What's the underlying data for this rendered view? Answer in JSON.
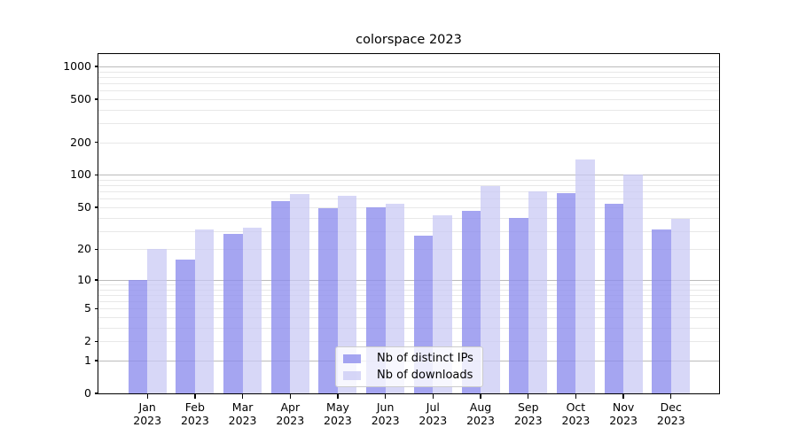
{
  "title": "colorspace 2023",
  "chart_data": {
    "type": "bar",
    "title": "colorspace 2023",
    "categories": [
      "Jan 2023",
      "Feb 2023",
      "Mar 2023",
      "Apr 2023",
      "May 2023",
      "Jun 2023",
      "Jul 2023",
      "Aug 2023",
      "Sep 2023",
      "Oct 2023",
      "Nov 2023",
      "Dec 2023"
    ],
    "series": [
      {
        "name": "Nb of distinct IPs",
        "color": "rgba(140,140,237,0.78)",
        "values": [
          10,
          16,
          28,
          57,
          49,
          50,
          27,
          46,
          40,
          68,
          54,
          31
        ]
      },
      {
        "name": "Nb of downloads",
        "color": "rgba(200,200,244,0.72)",
        "values": [
          20,
          31,
          32,
          67,
          64,
          54,
          42,
          79,
          71,
          140,
          100,
          39
        ]
      }
    ],
    "xlabel": "",
    "ylabel": "",
    "y_scale": "log(1+x)",
    "y_ticks": [
      1000,
      500,
      200,
      100,
      50,
      20,
      10,
      5,
      2,
      1,
      0
    ],
    "ylim": [
      0,
      1300
    ],
    "grid": "horizontal major+minor",
    "legend_position": "lower center"
  },
  "colors": {
    "background": "#ffffff",
    "axis": "#000000",
    "grid_major": "#bbbbbb",
    "grid_minor": "#e8e8e8",
    "bar_distinct_ips": "rgba(140,140,237,0.78)",
    "bar_downloads": "rgba(200,200,244,0.72)",
    "legend_border": "#cccccc",
    "legend_background": "rgba(255,255,255,0.8)"
  }
}
